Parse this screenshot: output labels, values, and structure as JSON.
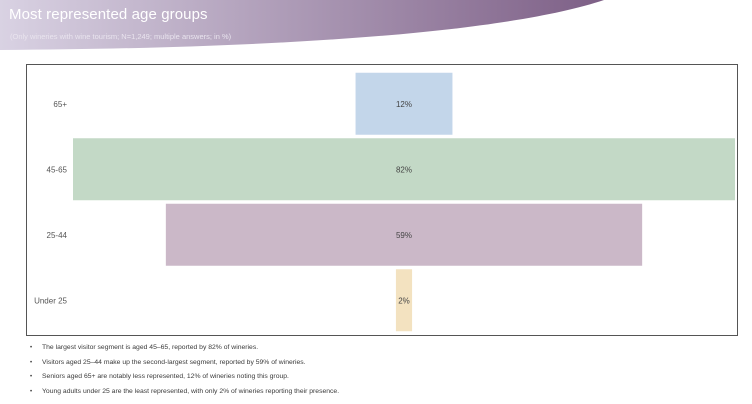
{
  "header": {
    "title": "Most represented age groups",
    "subtitle": "(Only wineries with wine tourism; N=1,249; multiple answers; in %)",
    "gradient_start": "#d9d2e3",
    "gradient_end": "#7d5f86"
  },
  "chart_data": {
    "type": "bar",
    "orientation": "horizontal",
    "layout": "centered-funnel",
    "categories": [
      "65+",
      "45-65",
      "25-44",
      "Under 25"
    ],
    "values": [
      12,
      82,
      59,
      2
    ],
    "value_suffix": "%",
    "colors": [
      "#c3d6ea",
      "#c3d9c6",
      "#cbb8c8",
      "#f3e2c0"
    ],
    "xlim": [
      0,
      82
    ],
    "grid": false,
    "legend": "none",
    "title": "",
    "xlabel": "",
    "ylabel": ""
  },
  "notes": [
    "The largest visitor segment is aged 45–65, reported by 82% of wineries.",
    "Visitors aged 25–44 make up the second-largest segment, reported by 59% of wineries.",
    "Seniors aged 65+ are notably less represented, 12% of wineries noting this group.",
    "Young adults under 25 are the least represented, with only 2% of wineries reporting their presence."
  ],
  "notes_bullet": "•"
}
